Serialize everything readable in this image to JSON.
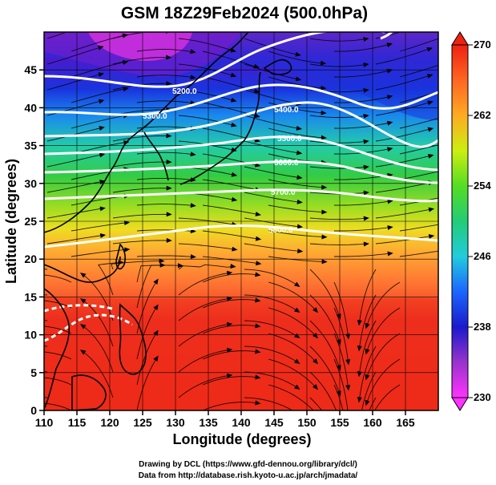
{
  "title": "GSM 18Z29Feb2024 (500.0hPa)",
  "x_axis": {
    "label": "Longitude (degrees)",
    "ticks": [
      "110",
      "115",
      "120",
      "125",
      "130",
      "135",
      "140",
      "145",
      "150",
      "155",
      "160",
      "165"
    ]
  },
  "y_axis": {
    "label": "Latitude (degrees)",
    "ticks": [
      "0",
      "5",
      "10",
      "15",
      "20",
      "25",
      "30",
      "35",
      "40",
      "45"
    ]
  },
  "colorbar": {
    "labels": [
      "270",
      "262",
      "254",
      "246",
      "238",
      "230"
    ],
    "stops": [
      "#ff33ff",
      "#9933cc",
      "#1a1acc",
      "#1a66ff",
      "#22ccdd",
      "#22cc77",
      "#55dd22",
      "#ccee11",
      "#ffaa22",
      "#ff6622",
      "#ee2211"
    ]
  },
  "contour_labels": [
    "5200.0",
    "5300.0",
    "5400.0",
    "5500.0",
    "5600.0",
    "5700.0",
    "5800.0"
  ],
  "credits": {
    "line1": "Drawing by DCL (https://www.gfd-dennou.org/library/dcl/)",
    "line2": "Data from http://database.rish.kyoto-u.ac.jp/arch/jmadata/"
  },
  "chart_data": {
    "type": "heatmap",
    "title": "GSM 18Z29Feb2024 (500.0hPa)",
    "xlabel": "Longitude (degrees)",
    "ylabel": "Latitude (degrees)",
    "xlim": [
      110,
      170
    ],
    "ylim": [
      0,
      50
    ],
    "colorbar_range": [
      230,
      270
    ],
    "colorbar_ticks": [
      230,
      238,
      246,
      254,
      262,
      270
    ],
    "contour_levels": [
      5200,
      5300,
      5400,
      5500,
      5600,
      5700,
      5800
    ]
  }
}
